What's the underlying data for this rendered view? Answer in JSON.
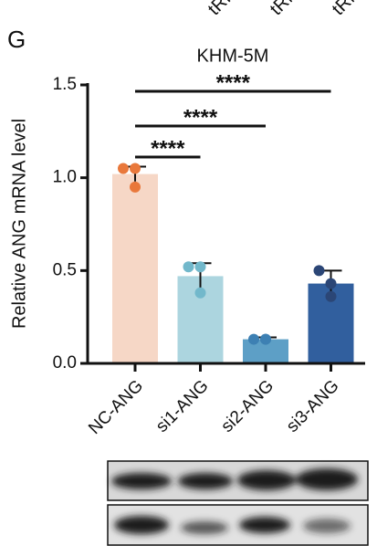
{
  "panel_label": "G",
  "header_fragments": [
    "tRI",
    "tRN",
    "tRN"
  ],
  "chart_data": {
    "type": "bar",
    "title": "KHM-5M",
    "y_label": "Relative ANG mRNA level",
    "categories": [
      "NC-ANG",
      "si1-ANG",
      "si2-ANG",
      "si3-ANG"
    ],
    "values": [
      1.02,
      0.47,
      0.13,
      0.43
    ],
    "errors": [
      0.04,
      0.07,
      0.01,
      0.07
    ],
    "colors": [
      "#f6d7c6",
      "#acd5df",
      "#5d9fc6",
      "#315f9e"
    ],
    "points": [
      [
        1.05,
        1.05,
        0.95
      ],
      [
        0.52,
        0.52,
        0.38
      ],
      [
        0.13,
        0.13,
        0.13
      ],
      [
        0.5,
        0.43,
        0.36
      ]
    ],
    "point_colors": [
      "#e9783b",
      "#72b8cb",
      "#3d80b3",
      "#2b4676"
    ],
    "ylim": [
      0,
      1.5
    ],
    "yticks": [
      {
        "value": 0,
        "label": "0.0"
      },
      {
        "value": 0.5,
        "label": "0.5"
      },
      {
        "value": 1,
        "label": "1.0"
      },
      {
        "value": 1.5,
        "label": "1.5"
      }
    ],
    "comparisons": [
      {
        "label": "****",
        "groups": [
          "NC-ANG",
          "si3-ANG"
        ]
      },
      {
        "label": "****",
        "groups": [
          "NC-ANG",
          "si2-ANG"
        ]
      },
      {
        "label": "****",
        "groups": [
          "NC-ANG",
          "si1-ANG"
        ]
      }
    ]
  }
}
